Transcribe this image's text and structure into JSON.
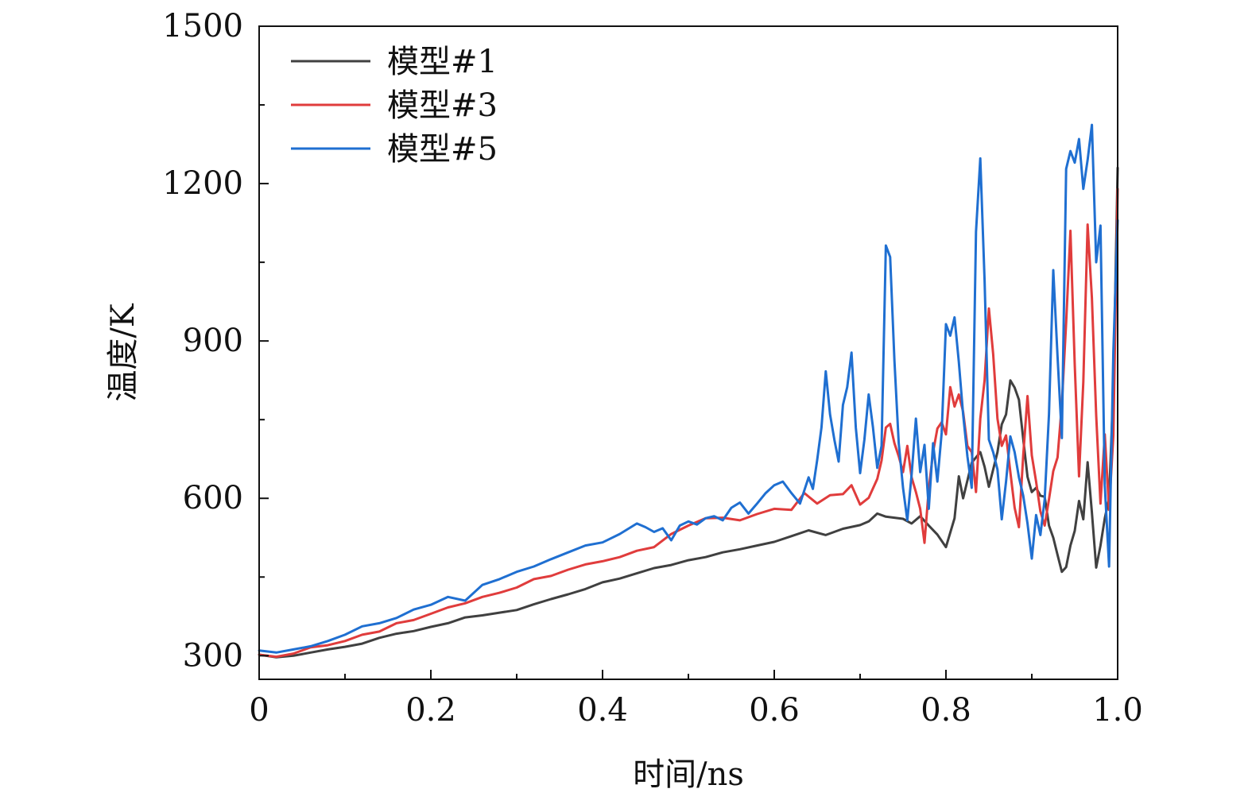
{
  "chart_data": {
    "type": "line",
    "title": "",
    "xlabel": "时间/ns",
    "ylabel": "温度/K",
    "xlim": [
      0,
      1.0
    ],
    "ylim": [
      255,
      1500
    ],
    "xticks": [
      0,
      0.1,
      0.2,
      0.3,
      0.4,
      0.5,
      0.6,
      0.7,
      0.8,
      0.9,
      1.0
    ],
    "xtick_labels": [
      "0",
      "",
      "0.2",
      "",
      "0.4",
      "",
      "0.6",
      "",
      "0.8",
      "",
      "1.0"
    ],
    "yticks": [
      300,
      450,
      600,
      750,
      900,
      1050,
      1200,
      1350,
      1500
    ],
    "ytick_labels": [
      "300",
      "",
      "600",
      "",
      "900",
      "",
      "1200",
      "",
      "1500"
    ],
    "grid": false,
    "legend_position": "top-left",
    "series": [
      {
        "name": "模型#1",
        "color": "#404040",
        "points": [
          [
            0,
            302
          ],
          [
            0.02,
            297
          ],
          [
            0.04,
            300
          ],
          [
            0.06,
            306
          ],
          [
            0.08,
            312
          ],
          [
            0.1,
            317
          ],
          [
            0.12,
            323
          ],
          [
            0.14,
            334
          ],
          [
            0.16,
            342
          ],
          [
            0.18,
            347
          ],
          [
            0.2,
            355
          ],
          [
            0.22,
            362
          ],
          [
            0.24,
            373
          ],
          [
            0.26,
            377
          ],
          [
            0.28,
            382
          ],
          [
            0.3,
            387
          ],
          [
            0.32,
            398
          ],
          [
            0.34,
            408
          ],
          [
            0.36,
            417
          ],
          [
            0.38,
            427
          ],
          [
            0.4,
            440
          ],
          [
            0.42,
            447
          ],
          [
            0.44,
            457
          ],
          [
            0.46,
            467
          ],
          [
            0.48,
            473
          ],
          [
            0.5,
            482
          ],
          [
            0.52,
            488
          ],
          [
            0.54,
            497
          ],
          [
            0.56,
            503
          ],
          [
            0.58,
            510
          ],
          [
            0.6,
            517
          ],
          [
            0.62,
            528
          ],
          [
            0.64,
            539
          ],
          [
            0.66,
            530
          ],
          [
            0.68,
            542
          ],
          [
            0.7,
            549
          ],
          [
            0.71,
            556
          ],
          [
            0.72,
            571
          ],
          [
            0.73,
            565
          ],
          [
            0.74,
            563
          ],
          [
            0.75,
            561
          ],
          [
            0.76,
            552
          ],
          [
            0.77,
            566
          ],
          [
            0.78,
            548
          ],
          [
            0.79,
            531
          ],
          [
            0.8,
            507
          ],
          [
            0.81,
            562
          ],
          [
            0.815,
            642
          ],
          [
            0.82,
            600
          ],
          [
            0.83,
            668
          ],
          [
            0.84,
            688
          ],
          [
            0.845,
            660
          ],
          [
            0.85,
            622
          ],
          [
            0.86,
            688
          ],
          [
            0.865,
            741
          ],
          [
            0.87,
            760
          ],
          [
            0.875,
            825
          ],
          [
            0.88,
            811
          ],
          [
            0.885,
            788
          ],
          [
            0.89,
            713
          ],
          [
            0.895,
            641
          ],
          [
            0.9,
            612
          ],
          [
            0.905,
            620
          ],
          [
            0.91,
            605
          ],
          [
            0.915,
            603
          ],
          [
            0.92,
            548
          ],
          [
            0.925,
            525
          ],
          [
            0.93,
            492
          ],
          [
            0.935,
            460
          ],
          [
            0.94,
            469
          ],
          [
            0.945,
            510
          ],
          [
            0.95,
            538
          ],
          [
            0.955,
            595
          ],
          [
            0.96,
            560
          ],
          [
            0.965,
            669
          ],
          [
            0.97,
            573
          ],
          [
            0.975,
            468
          ],
          [
            0.98,
            510
          ],
          [
            0.985,
            562
          ],
          [
            0.99,
            600
          ],
          [
            0.995,
            812
          ],
          [
            1.0,
            1230
          ]
        ]
      },
      {
        "name": "模型#3",
        "color": "#e03c3c",
        "points": [
          [
            0,
            302
          ],
          [
            0.02,
            298
          ],
          [
            0.04,
            304
          ],
          [
            0.06,
            316
          ],
          [
            0.08,
            320
          ],
          [
            0.1,
            328
          ],
          [
            0.12,
            340
          ],
          [
            0.14,
            346
          ],
          [
            0.16,
            362
          ],
          [
            0.18,
            368
          ],
          [
            0.2,
            380
          ],
          [
            0.22,
            392
          ],
          [
            0.24,
            400
          ],
          [
            0.26,
            412
          ],
          [
            0.28,
            420
          ],
          [
            0.3,
            430
          ],
          [
            0.32,
            446
          ],
          [
            0.34,
            452
          ],
          [
            0.36,
            464
          ],
          [
            0.38,
            474
          ],
          [
            0.4,
            480
          ],
          [
            0.42,
            488
          ],
          [
            0.44,
            500
          ],
          [
            0.46,
            507
          ],
          [
            0.48,
            532
          ],
          [
            0.5,
            548
          ],
          [
            0.52,
            562
          ],
          [
            0.54,
            563
          ],
          [
            0.56,
            558
          ],
          [
            0.58,
            570
          ],
          [
            0.6,
            580
          ],
          [
            0.62,
            578
          ],
          [
            0.635,
            610
          ],
          [
            0.65,
            590
          ],
          [
            0.665,
            606
          ],
          [
            0.68,
            608
          ],
          [
            0.69,
            625
          ],
          [
            0.7,
            588
          ],
          [
            0.71,
            601
          ],
          [
            0.72,
            637
          ],
          [
            0.725,
            672
          ],
          [
            0.73,
            735
          ],
          [
            0.735,
            742
          ],
          [
            0.74,
            705
          ],
          [
            0.745,
            680
          ],
          [
            0.75,
            650
          ],
          [
            0.755,
            700
          ],
          [
            0.76,
            640
          ],
          [
            0.765,
            612
          ],
          [
            0.77,
            580
          ],
          [
            0.775,
            515
          ],
          [
            0.78,
            618
          ],
          [
            0.785,
            688
          ],
          [
            0.79,
            733
          ],
          [
            0.795,
            745
          ],
          [
            0.8,
            722
          ],
          [
            0.805,
            812
          ],
          [
            0.81,
            775
          ],
          [
            0.815,
            798
          ],
          [
            0.82,
            765
          ],
          [
            0.825,
            700
          ],
          [
            0.83,
            688
          ],
          [
            0.835,
            612
          ],
          [
            0.84,
            752
          ],
          [
            0.845,
            825
          ],
          [
            0.85,
            962
          ],
          [
            0.855,
            875
          ],
          [
            0.86,
            752
          ],
          [
            0.865,
            700
          ],
          [
            0.87,
            720
          ],
          [
            0.875,
            650
          ],
          [
            0.88,
            582
          ],
          [
            0.885,
            545
          ],
          [
            0.89,
            682
          ],
          [
            0.895,
            795
          ],
          [
            0.9,
            682
          ],
          [
            0.905,
            632
          ],
          [
            0.91,
            575
          ],
          [
            0.915,
            548
          ],
          [
            0.92,
            598
          ],
          [
            0.925,
            652
          ],
          [
            0.93,
            678
          ],
          [
            0.935,
            780
          ],
          [
            0.94,
            935
          ],
          [
            0.945,
            1110
          ],
          [
            0.95,
            855
          ],
          [
            0.955,
            642
          ],
          [
            0.96,
            822
          ],
          [
            0.965,
            1122
          ],
          [
            0.97,
            982
          ],
          [
            0.975,
            758
          ],
          [
            0.98,
            590
          ],
          [
            0.985,
            722
          ],
          [
            0.99,
            578
          ],
          [
            0.995,
            720
          ],
          [
            1.0,
            1190
          ]
        ]
      },
      {
        "name": "模型#5",
        "color": "#1f6fd1",
        "points": [
          [
            0,
            310
          ],
          [
            0.02,
            306
          ],
          [
            0.04,
            312
          ],
          [
            0.06,
            318
          ],
          [
            0.08,
            328
          ],
          [
            0.1,
            340
          ],
          [
            0.12,
            356
          ],
          [
            0.14,
            362
          ],
          [
            0.16,
            372
          ],
          [
            0.18,
            388
          ],
          [
            0.2,
            397
          ],
          [
            0.22,
            412
          ],
          [
            0.24,
            405
          ],
          [
            0.26,
            435
          ],
          [
            0.28,
            446
          ],
          [
            0.3,
            460
          ],
          [
            0.32,
            470
          ],
          [
            0.34,
            484
          ],
          [
            0.36,
            497
          ],
          [
            0.38,
            510
          ],
          [
            0.4,
            516
          ],
          [
            0.42,
            532
          ],
          [
            0.44,
            552
          ],
          [
            0.45,
            545
          ],
          [
            0.46,
            536
          ],
          [
            0.47,
            543
          ],
          [
            0.48,
            520
          ],
          [
            0.49,
            548
          ],
          [
            0.5,
            556
          ],
          [
            0.51,
            550
          ],
          [
            0.52,
            562
          ],
          [
            0.53,
            566
          ],
          [
            0.54,
            558
          ],
          [
            0.55,
            582
          ],
          [
            0.56,
            592
          ],
          [
            0.57,
            571
          ],
          [
            0.58,
            590
          ],
          [
            0.59,
            610
          ],
          [
            0.6,
            625
          ],
          [
            0.61,
            632
          ],
          [
            0.62,
            610
          ],
          [
            0.63,
            590
          ],
          [
            0.64,
            640
          ],
          [
            0.645,
            618
          ],
          [
            0.65,
            673
          ],
          [
            0.655,
            735
          ],
          [
            0.66,
            842
          ],
          [
            0.665,
            760
          ],
          [
            0.67,
            712
          ],
          [
            0.675,
            670
          ],
          [
            0.68,
            778
          ],
          [
            0.685,
            812
          ],
          [
            0.69,
            878
          ],
          [
            0.695,
            735
          ],
          [
            0.7,
            648
          ],
          [
            0.705,
            712
          ],
          [
            0.71,
            798
          ],
          [
            0.715,
            735
          ],
          [
            0.72,
            658
          ],
          [
            0.725,
            700
          ],
          [
            0.73,
            1082
          ],
          [
            0.735,
            1060
          ],
          [
            0.74,
            862
          ],
          [
            0.745,
            705
          ],
          [
            0.75,
            620
          ],
          [
            0.755,
            558
          ],
          [
            0.76,
            645
          ],
          [
            0.765,
            752
          ],
          [
            0.77,
            650
          ],
          [
            0.775,
            702
          ],
          [
            0.78,
            580
          ],
          [
            0.785,
            705
          ],
          [
            0.79,
            632
          ],
          [
            0.795,
            725
          ],
          [
            0.8,
            932
          ],
          [
            0.805,
            910
          ],
          [
            0.81,
            945
          ],
          [
            0.815,
            860
          ],
          [
            0.82,
            760
          ],
          [
            0.825,
            680
          ],
          [
            0.83,
            620
          ],
          [
            0.835,
            1108
          ],
          [
            0.84,
            1248
          ],
          [
            0.845,
            1015
          ],
          [
            0.85,
            712
          ],
          [
            0.855,
            688
          ],
          [
            0.86,
            655
          ],
          [
            0.865,
            560
          ],
          [
            0.87,
            632
          ],
          [
            0.875,
            718
          ],
          [
            0.88,
            688
          ],
          [
            0.885,
            640
          ],
          [
            0.89,
            605
          ],
          [
            0.895,
            552
          ],
          [
            0.9,
            485
          ],
          [
            0.905,
            568
          ],
          [
            0.91,
            530
          ],
          [
            0.915,
            598
          ],
          [
            0.92,
            760
          ],
          [
            0.925,
            1035
          ],
          [
            0.93,
            870
          ],
          [
            0.935,
            715
          ],
          [
            0.94,
            1228
          ],
          [
            0.945,
            1262
          ],
          [
            0.95,
            1240
          ],
          [
            0.955,
            1285
          ],
          [
            0.96,
            1190
          ],
          [
            0.965,
            1245
          ],
          [
            0.97,
            1312
          ],
          [
            0.975,
            1050
          ],
          [
            0.98,
            1120
          ],
          [
            0.985,
            625
          ],
          [
            0.99,
            470
          ],
          [
            0.995,
            880
          ],
          [
            1.0,
            1130
          ]
        ]
      }
    ]
  }
}
